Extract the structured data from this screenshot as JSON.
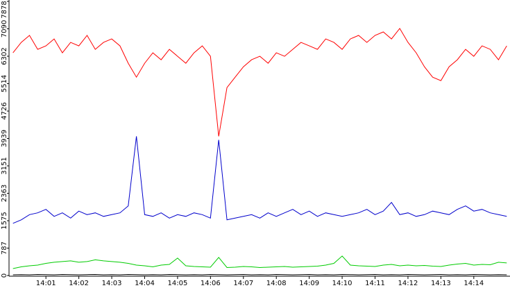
{
  "chart_data": {
    "type": "line",
    "x": [
      0,
      0.25,
      0.5,
      0.75,
      1,
      1.25,
      1.5,
      1.75,
      2,
      2.25,
      2.5,
      2.75,
      3,
      3.25,
      3.5,
      3.75,
      4,
      4.25,
      4.5,
      4.75,
      5,
      5.25,
      5.5,
      5.75,
      6,
      6.25,
      6.5,
      6.75,
      7,
      7.25,
      7.5,
      7.75,
      8,
      8.25,
      8.5,
      8.75,
      9,
      9.25,
      9.5,
      9.75,
      10,
      10.25,
      10.5,
      10.75,
      11,
      11.25,
      11.5,
      11.75,
      12,
      12.25,
      12.5,
      12.75,
      13,
      13.25,
      13.5,
      13.75,
      14,
      14.25,
      14.5,
      14.75,
      15
    ],
    "series": [
      {
        "color": "#ff0000",
        "values": [
          6400,
          6700,
          6900,
          6500,
          6600,
          6800,
          6400,
          6700,
          6600,
          6900,
          6500,
          6700,
          6800,
          6600,
          6100,
          5700,
          6100,
          6400,
          6200,
          6500,
          6300,
          6100,
          6400,
          6600,
          6300,
          4000,
          5400,
          5700,
          6000,
          6200,
          6300,
          6100,
          6400,
          6300,
          6500,
          6700,
          6600,
          6500,
          6800,
          6700,
          6500,
          6800,
          6900,
          6700,
          6900,
          7000,
          6800,
          7100,
          6700,
          6400,
          6000,
          5700,
          5600,
          6000,
          6200,
          6500,
          6300,
          6600,
          6500,
          6200,
          6600
        ]
      },
      {
        "color": "#0000cc",
        "values": [
          1500,
          1600,
          1750,
          1800,
          1900,
          1700,
          1800,
          1650,
          1850,
          1750,
          1800,
          1700,
          1750,
          1800,
          2000,
          4000,
          1750,
          1700,
          1800,
          1650,
          1750,
          1700,
          1800,
          1750,
          1650,
          3900,
          1600,
          1650,
          1700,
          1750,
          1650,
          1800,
          1700,
          1800,
          1900,
          1750,
          1850,
          1700,
          1800,
          1750,
          1700,
          1750,
          1800,
          1900,
          1750,
          1850,
          2100,
          1750,
          1800,
          1700,
          1750,
          1850,
          1800,
          1750,
          1900,
          2000,
          1850,
          1900,
          1800,
          1750,
          1700
        ]
      },
      {
        "color": "#00cc00",
        "values": [
          200,
          250,
          280,
          300,
          350,
          380,
          400,
          420,
          380,
          400,
          450,
          420,
          400,
          380,
          350,
          300,
          280,
          250,
          300,
          320,
          500,
          280,
          260,
          250,
          240,
          520,
          230,
          240,
          260,
          250,
          230,
          240,
          250,
          260,
          240,
          250,
          260,
          270,
          300,
          350,
          560,
          300,
          280,
          270,
          260,
          300,
          320,
          280,
          300,
          280,
          290,
          270,
          260,
          300,
          330,
          350,
          300,
          320,
          310,
          380,
          360
        ]
      },
      {
        "color": "#000000",
        "values": [
          20,
          25,
          20,
          30,
          25,
          20,
          30,
          25,
          20,
          25,
          30,
          20,
          25,
          20,
          30,
          25,
          20,
          25,
          20,
          30,
          25,
          20,
          25,
          20,
          30,
          25,
          20,
          25,
          30,
          20,
          25,
          20,
          30,
          25,
          20,
          25,
          30,
          20,
          25,
          20,
          30,
          25,
          20,
          25,
          30,
          20,
          25,
          20,
          30,
          25,
          20,
          25,
          30,
          20,
          25,
          20,
          30,
          25,
          20,
          25,
          20
        ]
      }
    ],
    "xlim": [
      -0.1,
      15.1
    ],
    "xticks": [
      {
        "value": 1,
        "label": "14:01"
      },
      {
        "value": 2,
        "label": "14:02"
      },
      {
        "value": 3,
        "label": "14:03"
      },
      {
        "value": 4,
        "label": "14:04"
      },
      {
        "value": 5,
        "label": "14:05"
      },
      {
        "value": 6,
        "label": "14:06"
      },
      {
        "value": 7,
        "label": "14:07"
      },
      {
        "value": 8,
        "label": "14:08"
      },
      {
        "value": 9,
        "label": "14:09"
      },
      {
        "value": 10,
        "label": "14:10"
      },
      {
        "value": 11,
        "label": "14:11"
      },
      {
        "value": 12,
        "label": "14:12"
      },
      {
        "value": 13,
        "label": "14:13"
      },
      {
        "value": 14,
        "label": "14:14"
      }
    ],
    "ylim": [
      0,
      7878
    ],
    "yticks": [
      0,
      787,
      1575,
      2363,
      3151,
      3939,
      4726,
      5514,
      6302,
      7090,
      7878
    ]
  }
}
